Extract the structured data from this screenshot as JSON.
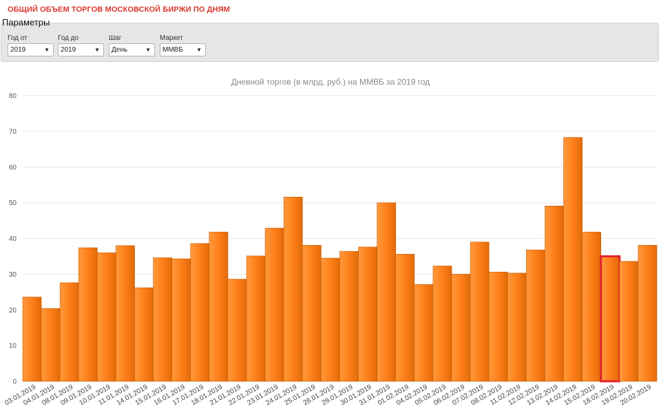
{
  "page": {
    "title": "ОБЩИЙ ОБЪЕМ ТОРГОВ МОСКОВСКОЙ БИРЖИ ПО ДНЯМ",
    "params_heading": "Параметры"
  },
  "filters": [
    {
      "label": "Год от",
      "value": "2019"
    },
    {
      "label": "Год до",
      "value": "2019"
    },
    {
      "label": "Шаг",
      "value": "День"
    },
    {
      "label": "Маркет",
      "value": "ММВБ"
    }
  ],
  "chart_data": {
    "type": "bar",
    "title": "Дневной  торгов (в млрд. руб.) на ММВБ за 2019 год",
    "xlabel": "",
    "ylabel": "",
    "ylim": [
      0,
      80
    ],
    "yticks": [
      0,
      10,
      20,
      30,
      40,
      50,
      60,
      70,
      80
    ],
    "grid": true,
    "categories": [
      "03.01.2019",
      "04.01.2019",
      "08.01.2019",
      "09.01.2019",
      "10.01.2019",
      "11.01.2019",
      "14.01.2019",
      "15.01.2019",
      "16.01.2019",
      "17.01.2019",
      "18.01.2019",
      "21.01.2019",
      "22.01.2019",
      "23.01.2019",
      "24.01.2019",
      "25.01.2019",
      "28.01.2019",
      "29.01.2019",
      "30.01.2019",
      "31.01.2019",
      "01.02.2019",
      "04.02.2019",
      "05.02.2019",
      "06.02.2019",
      "07.02.2019",
      "08.02.2019",
      "11.02.2019",
      "12.02.2019",
      "13.02.2019",
      "14.02.2019",
      "15.02.2019",
      "18.02.2019",
      "19.02.2019",
      "20.02.2019"
    ],
    "values": [
      23.6,
      20.4,
      27.6,
      37.4,
      36.0,
      38.0,
      26.2,
      34.6,
      34.3,
      38.6,
      41.8,
      28.6,
      35.1,
      42.9,
      51.6,
      38.1,
      34.5,
      36.4,
      37.6,
      50.0,
      35.6,
      27.1,
      32.3,
      30.0,
      39.0,
      30.6,
      30.3,
      36.8,
      49.1,
      68.3,
      41.8,
      35.0,
      33.6,
      38.1
    ],
    "bar_color": "#ff7f1a",
    "highlighted_category": "18.02.2019",
    "highlight_color": "#e0242d"
  }
}
